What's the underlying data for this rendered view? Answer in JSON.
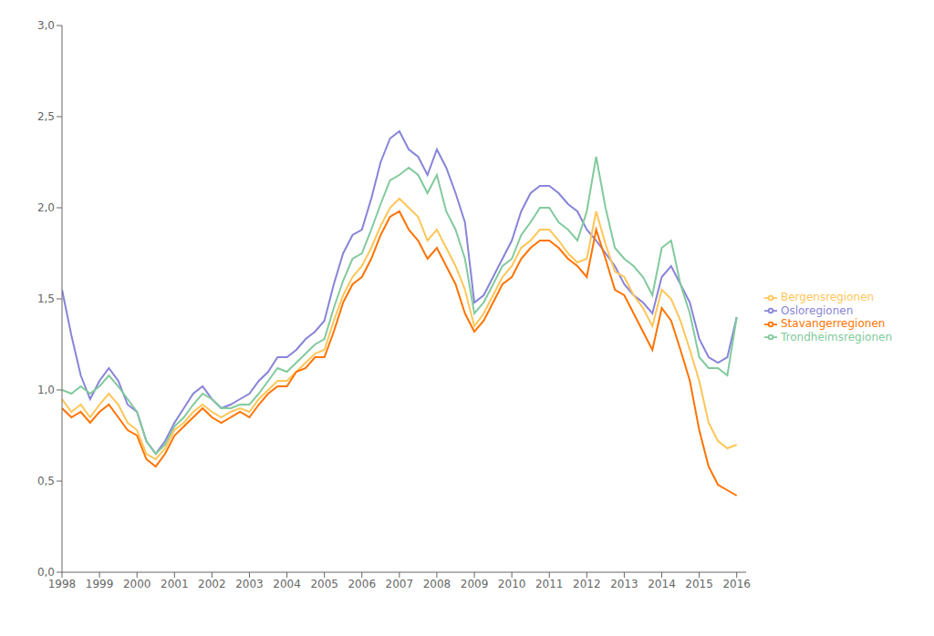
{
  "chart_data": {
    "type": "line",
    "x": [
      1998,
      1998.25,
      1998.5,
      1998.75,
      1999,
      1999.25,
      1999.5,
      1999.75,
      2000,
      2000.25,
      2000.5,
      2000.75,
      2001,
      2001.25,
      2001.5,
      2001.75,
      2002,
      2002.25,
      2002.5,
      2002.75,
      2003,
      2003.25,
      2003.5,
      2003.75,
      2004,
      2004.25,
      2004.5,
      2004.75,
      2005,
      2005.25,
      2005.5,
      2005.75,
      2006,
      2006.25,
      2006.5,
      2006.75,
      2007,
      2007.25,
      2007.5,
      2007.75,
      2008,
      2008.25,
      2008.5,
      2008.75,
      2009,
      2009.25,
      2009.5,
      2009.75,
      2010,
      2010.25,
      2010.5,
      2010.75,
      2011,
      2011.25,
      2011.5,
      2011.75,
      2012,
      2012.25,
      2012.5,
      2012.75,
      2013,
      2013.25,
      2013.5,
      2013.75,
      2014,
      2014.25,
      2014.5,
      2014.75,
      2015,
      2015.25,
      2015.5,
      2015.75,
      2016
    ],
    "series": [
      {
        "name": "Osloregionen",
        "color": "#8884d8",
        "values": [
          1.55,
          1.3,
          1.08,
          0.95,
          1.05,
          1.12,
          1.05,
          0.92,
          0.88,
          0.72,
          0.65,
          0.72,
          0.82,
          0.9,
          0.98,
          1.02,
          0.95,
          0.9,
          0.92,
          0.95,
          0.98,
          1.05,
          1.1,
          1.18,
          1.18,
          1.22,
          1.28,
          1.32,
          1.38,
          1.58,
          1.75,
          1.85,
          1.88,
          2.05,
          2.25,
          2.38,
          2.42,
          2.32,
          2.28,
          2.18,
          2.32,
          2.22,
          2.08,
          1.92,
          1.48,
          1.52,
          1.62,
          1.72,
          1.82,
          1.98,
          2.08,
          2.12,
          2.12,
          2.08,
          2.02,
          1.98,
          1.88,
          1.82,
          1.75,
          1.68,
          1.58,
          1.52,
          1.48,
          1.42,
          1.62,
          1.68,
          1.58,
          1.48,
          1.28,
          1.18,
          1.15,
          1.18,
          1.4
        ]
      },
      {
        "name": "Trondheimsregionen",
        "color": "#82ca9d",
        "values": [
          1.0,
          0.98,
          1.02,
          0.98,
          1.02,
          1.08,
          1.02,
          0.95,
          0.88,
          0.72,
          0.65,
          0.7,
          0.8,
          0.85,
          0.92,
          0.98,
          0.95,
          0.9,
          0.9,
          0.92,
          0.92,
          0.98,
          1.05,
          1.12,
          1.1,
          1.15,
          1.2,
          1.25,
          1.28,
          1.45,
          1.6,
          1.72,
          1.75,
          1.88,
          2.02,
          2.15,
          2.18,
          2.22,
          2.18,
          2.08,
          2.18,
          1.98,
          1.88,
          1.72,
          1.42,
          1.48,
          1.58,
          1.68,
          1.72,
          1.85,
          1.92,
          2.0,
          2.0,
          1.92,
          1.88,
          1.82,
          1.98,
          2.28,
          2.0,
          1.78,
          1.72,
          1.68,
          1.62,
          1.52,
          1.78,
          1.82,
          1.58,
          1.42,
          1.18,
          1.12,
          1.12,
          1.08,
          1.4
        ]
      },
      {
        "name": "Bergensregionen",
        "color": "#ffc658",
        "values": [
          0.95,
          0.88,
          0.92,
          0.85,
          0.92,
          0.98,
          0.92,
          0.82,
          0.78,
          0.65,
          0.62,
          0.68,
          0.78,
          0.82,
          0.88,
          0.92,
          0.88,
          0.85,
          0.88,
          0.9,
          0.88,
          0.95,
          1.0,
          1.05,
          1.05,
          1.1,
          1.15,
          1.2,
          1.22,
          1.38,
          1.52,
          1.62,
          1.68,
          1.78,
          1.9,
          2.0,
          2.05,
          2.0,
          1.95,
          1.82,
          1.88,
          1.78,
          1.68,
          1.55,
          1.35,
          1.42,
          1.52,
          1.62,
          1.68,
          1.78,
          1.82,
          1.88,
          1.88,
          1.82,
          1.75,
          1.7,
          1.72,
          1.98,
          1.8,
          1.65,
          1.62,
          1.52,
          1.45,
          1.35,
          1.55,
          1.5,
          1.38,
          1.22,
          1.05,
          0.82,
          0.72,
          0.68,
          0.7
        ]
      },
      {
        "name": "Stavangerregionen",
        "color": "#ff7300",
        "values": [
          0.9,
          0.85,
          0.88,
          0.82,
          0.88,
          0.92,
          0.85,
          0.78,
          0.75,
          0.62,
          0.58,
          0.65,
          0.75,
          0.8,
          0.85,
          0.9,
          0.85,
          0.82,
          0.85,
          0.88,
          0.85,
          0.92,
          0.98,
          1.02,
          1.02,
          1.1,
          1.12,
          1.18,
          1.18,
          1.32,
          1.48,
          1.58,
          1.62,
          1.72,
          1.85,
          1.95,
          1.98,
          1.88,
          1.82,
          1.72,
          1.78,
          1.68,
          1.58,
          1.42,
          1.32,
          1.38,
          1.48,
          1.58,
          1.62,
          1.72,
          1.78,
          1.82,
          1.82,
          1.78,
          1.72,
          1.68,
          1.62,
          1.88,
          1.72,
          1.55,
          1.52,
          1.42,
          1.32,
          1.22,
          1.45,
          1.38,
          1.22,
          1.05,
          0.78,
          0.58,
          0.48,
          0.45,
          0.42
        ]
      }
    ],
    "xlim": [
      1998,
      2016.25
    ],
    "xticks": [
      1998,
      1999,
      2000,
      2001,
      2002,
      2003,
      2004,
      2005,
      2006,
      2007,
      2008,
      2009,
      2010,
      2011,
      2012,
      2013,
      2014,
      2015,
      2016
    ],
    "ylim": [
      0,
      3
    ],
    "yticks": [
      {
        "value": 0,
        "label": "0,0"
      },
      {
        "value": 0.5,
        "label": "0,5"
      },
      {
        "value": 1,
        "label": "1,0"
      },
      {
        "value": 1.5,
        "label": "1,5"
      },
      {
        "value": 2,
        "label": "2,0"
      },
      {
        "value": 2.5,
        "label": "2,5"
      },
      {
        "value": 3,
        "label": "3,0"
      }
    ],
    "grid": false,
    "legend": "right"
  }
}
